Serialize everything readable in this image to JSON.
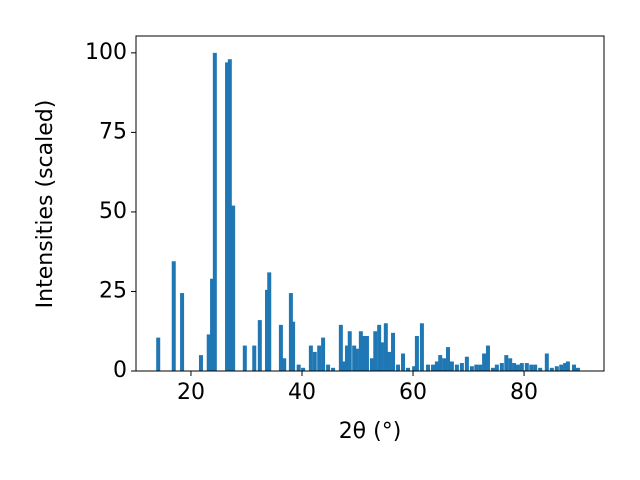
{
  "chart_data": {
    "type": "bar",
    "xlabel": "2θ (°)",
    "ylabel": "Intensities (scaled)",
    "color": "#1f77b4",
    "grid": false,
    "x": [
      14.1,
      16.9,
      18.4,
      21.8,
      23.2,
      23.8,
      24.3,
      26.5,
      27.0,
      27.6,
      29.7,
      31.4,
      32.4,
      33.7,
      34.1,
      36.2,
      36.8,
      38.0,
      38.4,
      39.4,
      40.2,
      41.6,
      42.3,
      43.1,
      43.8,
      44.7,
      45.6,
      47.0,
      47.6,
      48.1,
      48.6,
      49.4,
      49.9,
      50.6,
      51.2,
      51.7,
      52.6,
      53.2,
      53.9,
      54.4,
      55.1,
      55.7,
      56.4,
      57.3,
      58.2,
      59.1,
      60.2,
      60.7,
      61.6,
      62.7,
      63.6,
      64.3,
      64.9,
      65.6,
      66.3,
      67.0,
      67.9,
      68.8,
      69.7,
      70.6,
      71.4,
      72.1,
      72.8,
      73.5,
      74.4,
      75.1,
      76.0,
      76.8,
      77.5,
      78.2,
      78.9,
      79.6,
      80.5,
      81.3,
      82.0,
      82.9,
      84.1,
      85.0,
      85.9,
      86.7,
      87.4,
      87.9,
      89.0,
      89.7
    ],
    "values": [
      10.5,
      34.5,
      24.5,
      5,
      11.5,
      29,
      100,
      97,
      98,
      52,
      8,
      8,
      16,
      25.5,
      31,
      14.5,
      4,
      24.5,
      15.5,
      2,
      1,
      8,
      6,
      8,
      10.5,
      2,
      1,
      14.5,
      3,
      8,
      12.5,
      8,
      7,
      12.5,
      11,
      11,
      4,
      12.5,
      14.5,
      9,
      15,
      6,
      12,
      2,
      5.5,
      1,
      1.5,
      11,
      15,
      2,
      2,
      3,
      5,
      4,
      7.5,
      3,
      2,
      2.5,
      4.5,
      1.5,
      2,
      2,
      5.5,
      8,
      1,
      2,
      2.5,
      5,
      4,
      2.5,
      2,
      2.5,
      2.5,
      2,
      2,
      1,
      5.5,
      1,
      1.5,
      2,
      2.5,
      3,
      2,
      1
    ],
    "xlim": [
      10.1,
      94.4
    ],
    "ylim": [
      0,
      105.3
    ],
    "xticks": [
      20,
      40,
      60,
      80
    ],
    "yticks": [
      0,
      25,
      50,
      75,
      100
    ]
  }
}
